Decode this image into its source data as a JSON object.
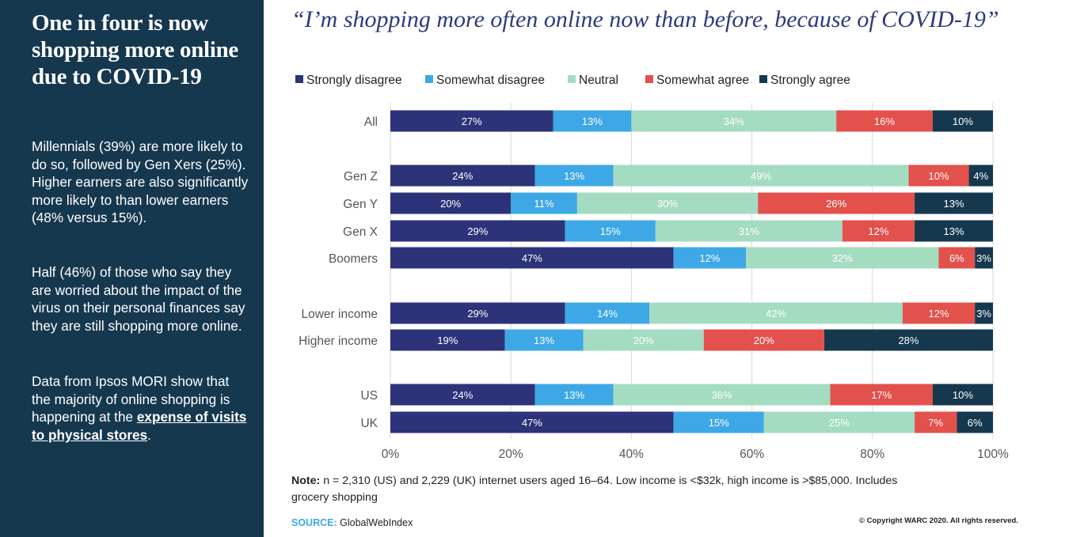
{
  "sidebar": {
    "heading": "One in four is now shopping more online due to COVID-19",
    "paragraph1": "Millennials (39%) are more likely to do so, followed by Gen Xers (25%). Higher earners are also significantly more likely to than lower earners (48% versus 15%).",
    "paragraph2": "Half (46%) of those who say they are worried about the impact of the virus on their personal finances say they are still shopping more online.",
    "paragraph3_text": "Data from Ipsos MORI show that the majority of online shopping is happening at the ",
    "paragraph3_link": "expense of visits to physical stores",
    "paragraph3_end": "."
  },
  "footer": {
    "note_label": "Note:",
    "note_text": " n = 2,310 (US) and 2,229 (UK) internet users aged 16–64. Low income is <$32k, high income is >$85,000. Includes grocery shopping",
    "source_label": "SOURCE:",
    "source_text": " GlobalWebIndex",
    "copyright": "© Copyright WARC 2020. All rights reserved."
  },
  "chart_data": {
    "type": "bar",
    "orientation": "horizontal",
    "stacked": true,
    "title": "“I’m shopping more often online now than before, because of COVID-19”",
    "categories": [
      "All",
      "Gen Z",
      "Gen Y",
      "Gen X",
      "Boomers",
      "Lower income",
      "Higher income",
      "US",
      "UK"
    ],
    "series": [
      {
        "name": "Strongly disagree",
        "color": "#2d3379",
        "label_color": "#ffffff",
        "values": [
          27,
          24,
          20,
          29,
          47,
          29,
          19,
          24,
          47
        ]
      },
      {
        "name": "Somewhat disagree",
        "color": "#3ea8e6",
        "label_color": "#ffffff",
        "values": [
          13,
          13,
          11,
          15,
          12,
          14,
          13,
          13,
          15
        ]
      },
      {
        "name": "Neutral",
        "color": "#a4dcc2",
        "label_color": "#ffffff",
        "values": [
          34,
          49,
          30,
          31,
          32,
          42,
          20,
          36,
          25
        ]
      },
      {
        "name": "Somewhat agree",
        "color": "#e3514c",
        "label_color": "#ffffff",
        "values": [
          16,
          10,
          26,
          12,
          6,
          12,
          20,
          17,
          7
        ]
      },
      {
        "name": "Strongly agree",
        "color": "#15384f",
        "label_color": "#ffffff",
        "values": [
          10,
          4,
          13,
          13,
          3,
          3,
          28,
          10,
          6
        ]
      }
    ],
    "xlim": [
      0,
      100
    ],
    "xticks": [
      "0%",
      "20%",
      "40%",
      "60%",
      "80%",
      "100%"
    ],
    "legend_position": "top",
    "grid": true
  }
}
